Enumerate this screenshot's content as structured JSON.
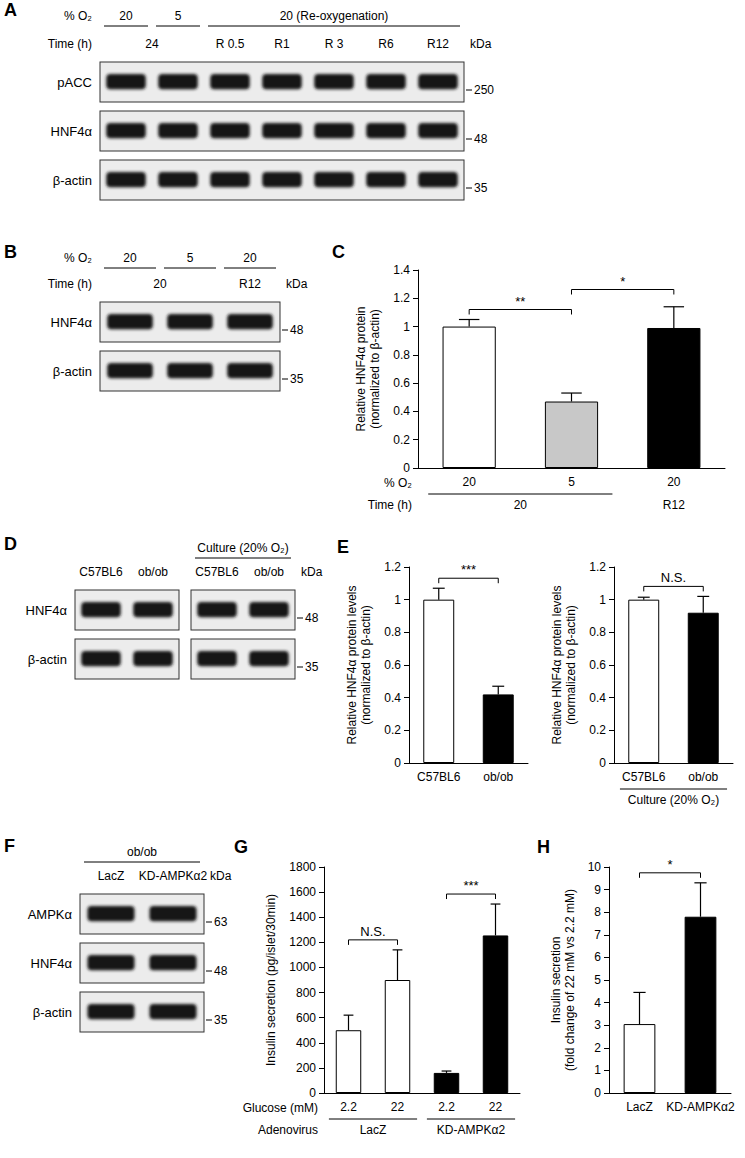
{
  "blots": [
    {
      "panel": "A",
      "lanes": 7,
      "header": [
        {
          "label": "% O₂",
          "cells": [
            {
              "text": "20",
              "span": [
                0,
                0
              ]
            },
            {
              "text": "5",
              "span": [
                1,
                1
              ]
            },
            {
              "text": "20 (Re-oxygenation)",
              "span": [
                2,
                6
              ]
            }
          ]
        },
        {
          "label": "Time (h)",
          "cells": [
            {
              "text": "24",
              "span": [
                0,
                1
              ]
            },
            {
              "text": "R 0.5",
              "span": [
                2,
                2
              ]
            },
            {
              "text": "R1",
              "span": [
                3,
                3
              ]
            },
            {
              "text": "R 3",
              "span": [
                4,
                4
              ]
            },
            {
              "text": "R6",
              "span": [
                5,
                5
              ]
            },
            {
              "text": "R12",
              "span": [
                6,
                6
              ]
            }
          ]
        }
      ],
      "rows": [
        {
          "name": "pACC"
        },
        {
          "name": "HNF4α"
        },
        {
          "name": "β-actin"
        }
      ],
      "unit": "kDa",
      "markers": [
        {
          "row": 0,
          "value": 250
        },
        {
          "row": 1,
          "value": 48
        },
        {
          "row": 2,
          "value": 35
        }
      ]
    },
    {
      "panel": "B",
      "lanes": 3,
      "header": [
        {
          "label": "% O₂",
          "cells": [
            {
              "text": "20",
              "span": [
                0,
                0
              ]
            },
            {
              "text": "5",
              "span": [
                1,
                1
              ]
            },
            {
              "text": "20",
              "span": [
                2,
                2
              ]
            }
          ]
        },
        {
          "label": "Time (h)",
          "cells": [
            {
              "text": "20",
              "span": [
                0,
                1
              ]
            },
            {
              "text": "R12",
              "span": [
                2,
                2
              ]
            }
          ]
        }
      ],
      "rows": [
        {
          "name": "HNF4α"
        },
        {
          "name": "β-actin"
        }
      ],
      "unit": "kDa",
      "markers": [
        {
          "row": 0,
          "value": 48
        },
        {
          "row": 1,
          "value": 35
        }
      ]
    },
    {
      "panel": "D",
      "lanes": 4,
      "groups": [
        [
          0,
          1
        ],
        [
          2,
          3
        ]
      ],
      "header": [
        {
          "cells": [
            {
              "text": "Culture (20% O₂)",
              "span": [
                2,
                3
              ]
            }
          ]
        },
        {
          "cells": [
            {
              "text": "C57BL6",
              "span": [
                0,
                0
              ]
            },
            {
              "text": "ob/ob",
              "span": [
                1,
                1
              ]
            },
            {
              "text": "C57BL6",
              "span": [
                2,
                2
              ]
            },
            {
              "text": "ob/ob",
              "span": [
                3,
                3
              ]
            }
          ]
        }
      ],
      "rows": [
        {
          "name": "HNF4α"
        },
        {
          "name": "β-actin"
        }
      ],
      "unit": "kDa",
      "markers": [
        {
          "row": 0,
          "value": 48
        },
        {
          "row": 1,
          "value": 35
        }
      ]
    },
    {
      "panel": "F",
      "lanes": 2,
      "header": [
        {
          "cells": [
            {
              "text": "ob/ob",
              "span": [
                0,
                1
              ]
            }
          ]
        },
        {
          "cells": [
            {
              "text": "LacZ",
              "span": [
                0,
                0
              ]
            },
            {
              "text": "KD-AMPKα2",
              "span": [
                1,
                1
              ]
            }
          ]
        }
      ],
      "rows": [
        {
          "name": "AMPKα"
        },
        {
          "name": "HNF4α"
        },
        {
          "name": "β-actin"
        }
      ],
      "unit": "kDa",
      "markers": [
        {
          "row": 0,
          "value": 63
        },
        {
          "row": 1,
          "value": 48
        },
        {
          "row": 2,
          "value": 35
        }
      ]
    }
  ],
  "chart_data": [
    {
      "panel": "C",
      "type": "bar",
      "categories": [
        "20",
        "5",
        "20"
      ],
      "category_row_label": "% O₂",
      "x_rows": [
        {
          "label": "Time (h)",
          "cells": [
            {
              "text": "20",
              "span": [
                0,
                1
              ]
            },
            {
              "text": "R12",
              "span": [
                2,
                2
              ]
            }
          ]
        }
      ],
      "values": [
        1,
        0.47,
        0.99
      ],
      "errors": [
        0.05,
        0.06,
        0.15
      ],
      "colors": [
        "#ffffff",
        "#c8c8c8",
        "#000000"
      ],
      "ylabel": "Relative HNF4α protein\n(normalized to β-actin)",
      "ylim": [
        0,
        1.4
      ],
      "yticks": [
        0,
        0.2,
        0.4,
        0.6,
        0.8,
        1,
        1.2,
        1.4
      ],
      "significance": [
        {
          "pair": [
            0,
            1
          ],
          "label": "**"
        },
        {
          "pair": [
            1,
            2
          ],
          "label": "*"
        }
      ]
    },
    {
      "panel": "E",
      "type": "bar",
      "categories": [
        "C57BL6",
        "ob/ob"
      ],
      "values": [
        1,
        0.42
      ],
      "errors": [
        0.07,
        0.05
      ],
      "colors": [
        "#ffffff",
        "#000000"
      ],
      "ylabel": "Relative HNF4α protein levels\n(normalized to β-actin)",
      "ylim": [
        0,
        1.2
      ],
      "yticks": [
        0,
        0.2,
        0.4,
        0.6,
        0.8,
        1,
        1.2
      ],
      "significance": [
        {
          "pair": [
            0,
            1
          ],
          "label": "***"
        }
      ]
    },
    {
      "type": "bar",
      "categories": [
        "C57BL6",
        "ob/ob"
      ],
      "x_rows": [
        {
          "cells": [
            {
              "text": "Culture (20% O₂)",
              "span": [
                0,
                1
              ]
            }
          ]
        }
      ],
      "values": [
        1,
        0.92
      ],
      "errors": [
        0.015,
        0.1
      ],
      "colors": [
        "#ffffff",
        "#000000"
      ],
      "ylabel": "Relative HNF4α protein levels\n(normalized to β-actin)",
      "ylim": [
        0,
        1.2
      ],
      "yticks": [
        0,
        0.2,
        0.4,
        0.6,
        0.8,
        1,
        1.2
      ],
      "significance": [
        {
          "pair": [
            0,
            1
          ],
          "label": "N.S."
        }
      ]
    },
    {
      "panel": "G",
      "type": "bar",
      "categories": [
        "2.2",
        "22",
        "2.2",
        "22"
      ],
      "category_row_label": "Glucose (mM)",
      "x_rows": [
        {
          "label": "Adenovirus",
          "cells": [
            {
              "text": "LacZ",
              "span": [
                0,
                1
              ]
            },
            {
              "text": "KD-AMPKα2",
              "span": [
                2,
                3
              ]
            }
          ]
        }
      ],
      "values": [
        500,
        900,
        160,
        1255
      ],
      "errors": [
        120,
        240,
        15,
        250
      ],
      "colors": [
        "#ffffff",
        "#ffffff",
        "#000000",
        "#000000"
      ],
      "ylabel": "Insulin secretion (pg/islet/30min)",
      "ylim": [
        0,
        1800
      ],
      "yticks": [
        0,
        200,
        400,
        600,
        800,
        1000,
        1200,
        1400,
        1600,
        1800
      ],
      "significance": [
        {
          "pair": [
            0,
            1
          ],
          "label": "N.S."
        },
        {
          "pair": [
            2,
            3
          ],
          "label": "***"
        }
      ]
    },
    {
      "panel": "H",
      "type": "bar",
      "categories": [
        "LacZ",
        "KD-AMPKα2"
      ],
      "values": [
        3.05,
        7.8
      ],
      "errors": [
        1.4,
        1.5
      ],
      "colors": [
        "#ffffff",
        "#000000"
      ],
      "ylabel": "Insulin secretion\n(fold change of 22 mM vs 2.2 mM)",
      "ylim": [
        0,
        10
      ],
      "yticks": [
        0,
        1,
        2,
        3,
        4,
        5,
        6,
        7,
        8,
        9,
        10
      ],
      "significance": [
        {
          "pair": [
            0,
            1
          ],
          "label": "*"
        }
      ]
    }
  ]
}
